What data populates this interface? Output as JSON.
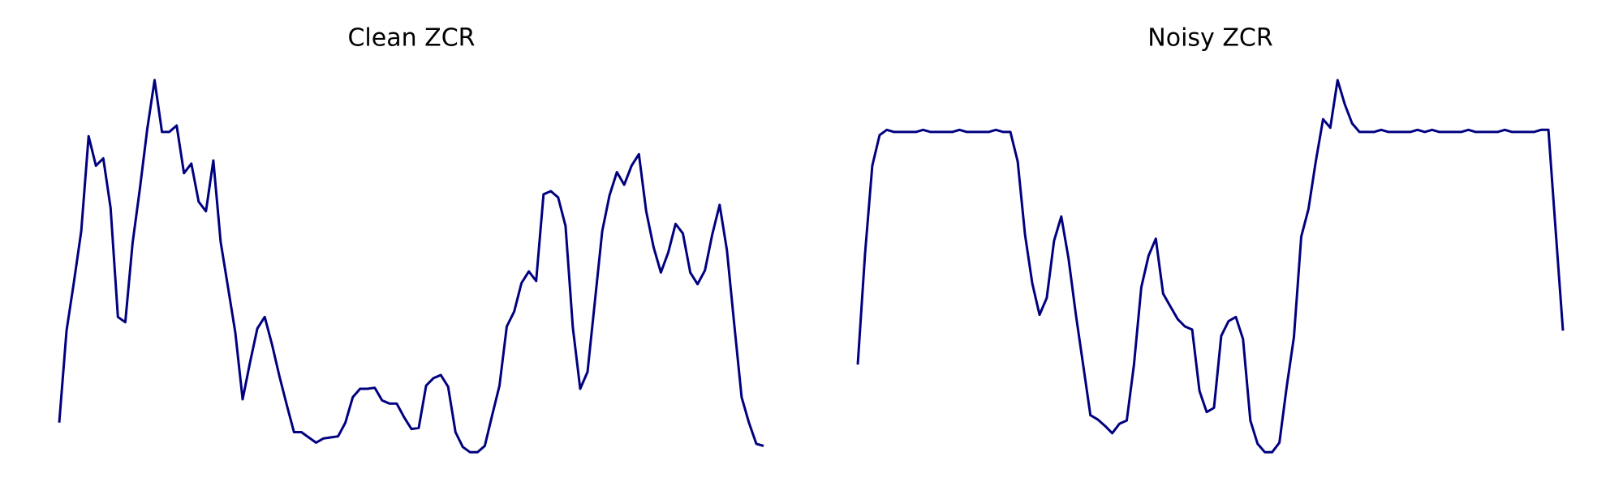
{
  "chart_data": [
    {
      "type": "line",
      "title": "Clean ZCR",
      "color": "#000080",
      "ylim": [
        0,
        0.4
      ],
      "values": [
        0.05,
        0.137,
        0.183,
        0.231,
        0.321,
        0.293,
        0.3,
        0.253,
        0.15,
        0.145,
        0.22,
        0.272,
        0.328,
        0.374,
        0.325,
        0.325,
        0.331,
        0.286,
        0.295,
        0.259,
        0.25,
        0.298,
        0.221,
        0.178,
        0.135,
        0.072,
        0.107,
        0.139,
        0.15,
        0.124,
        0.094,
        0.067,
        0.041,
        0.041,
        0.036,
        0.031,
        0.035,
        0.036,
        0.037,
        0.05,
        0.074,
        0.082,
        0.082,
        0.083,
        0.071,
        0.068,
        0.068,
        0.055,
        0.044,
        0.045,
        0.085,
        0.092,
        0.095,
        0.084,
        0.041,
        0.027,
        0.022,
        0.022,
        0.028,
        0.057,
        0.085,
        0.141,
        0.155,
        0.182,
        0.193,
        0.184,
        0.266,
        0.269,
        0.263,
        0.236,
        0.14,
        0.082,
        0.098,
        0.164,
        0.231,
        0.265,
        0.287,
        0.275,
        0.293,
        0.304,
        0.25,
        0.216,
        0.192,
        0.211,
        0.238,
        0.229,
        0.192,
        0.181,
        0.194,
        0.228,
        0.256,
        0.213,
        0.143,
        0.074,
        0.05,
        0.03,
        0.028
      ]
    },
    {
      "type": "line",
      "title": "Noisy ZCR",
      "color": "#000080",
      "ylim": [
        0,
        0.4
      ],
      "values": [
        0.105,
        0.21,
        0.293,
        0.322,
        0.327,
        0.325,
        0.325,
        0.325,
        0.325,
        0.327,
        0.325,
        0.325,
        0.325,
        0.325,
        0.327,
        0.325,
        0.325,
        0.325,
        0.325,
        0.327,
        0.325,
        0.325,
        0.297,
        0.228,
        0.182,
        0.152,
        0.168,
        0.222,
        0.245,
        0.205,
        0.152,
        0.105,
        0.057,
        0.053,
        0.047,
        0.04,
        0.049,
        0.052,
        0.105,
        0.178,
        0.208,
        0.224,
        0.172,
        0.16,
        0.148,
        0.141,
        0.138,
        0.08,
        0.06,
        0.064,
        0.132,
        0.146,
        0.15,
        0.129,
        0.052,
        0.03,
        0.022,
        0.022,
        0.031,
        0.084,
        0.131,
        0.226,
        0.252,
        0.297,
        0.337,
        0.329,
        0.374,
        0.351,
        0.333,
        0.325,
        0.325,
        0.325,
        0.327,
        0.325,
        0.325,
        0.325,
        0.325,
        0.327,
        0.325,
        0.327,
        0.325,
        0.325,
        0.325,
        0.325,
        0.327,
        0.325,
        0.325,
        0.325,
        0.325,
        0.327,
        0.325,
        0.325,
        0.325,
        0.325,
        0.327,
        0.327,
        0.232,
        0.137
      ]
    }
  ]
}
